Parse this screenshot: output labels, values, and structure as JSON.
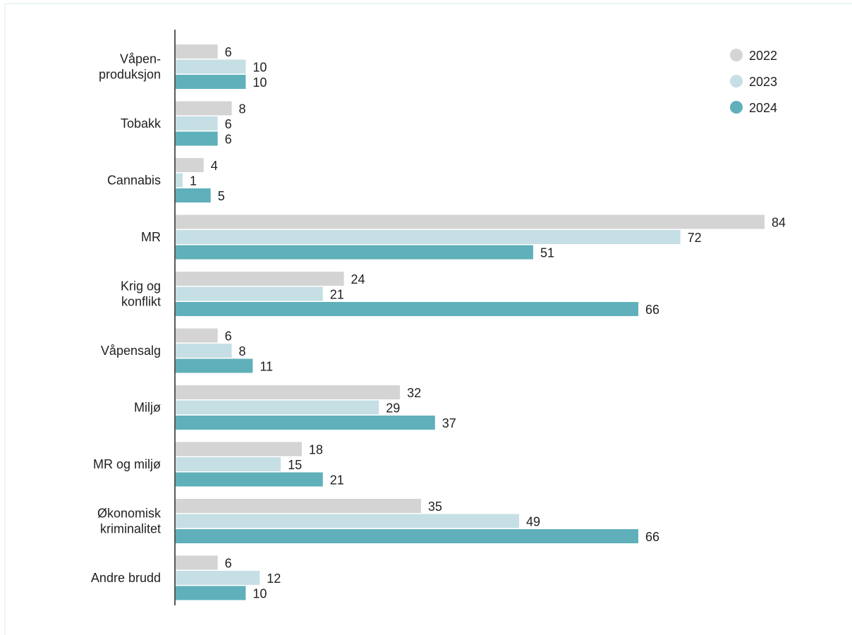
{
  "chart_data": {
    "type": "bar",
    "orientation": "horizontal",
    "categories": [
      [
        "Våpen-",
        "produksjon"
      ],
      [
        "Tobakk"
      ],
      [
        "Cannabis"
      ],
      [
        "MR"
      ],
      [
        "Krig og",
        "konflikt"
      ],
      [
        "Våpensalg"
      ],
      [
        "Miljø"
      ],
      [
        "MR og miljø"
      ],
      [
        "Økonomisk",
        "kriminalitet"
      ],
      [
        "Andre brudd"
      ]
    ],
    "series": [
      {
        "name": "2022",
        "color": "#d4d4d4",
        "values": [
          6,
          8,
          4,
          84,
          24,
          6,
          32,
          18,
          35,
          6
        ]
      },
      {
        "name": "2023",
        "color": "#c6dfe5",
        "values": [
          10,
          6,
          1,
          72,
          21,
          8,
          29,
          15,
          49,
          12
        ]
      },
      {
        "name": "2024",
        "color": "#5fb0ba",
        "values": [
          10,
          6,
          5,
          51,
          66,
          11,
          37,
          21,
          66,
          10
        ]
      }
    ],
    "xlim": [
      0,
      90
    ],
    "grid": false,
    "legend_position": "top-right",
    "data_labels": true
  }
}
